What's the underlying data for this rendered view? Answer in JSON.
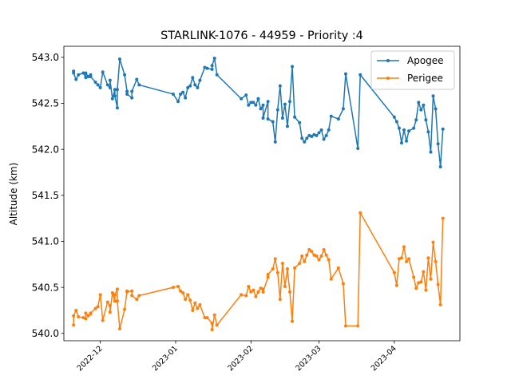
{
  "chart_data": {
    "type": "line",
    "title": "STARLINK-1076 - 44959 - Priority :4",
    "xlabel": "",
    "ylabel": "Altitude (km)",
    "ylim": [
      539.92,
      543.12
    ],
    "xlim": [
      "2022-11-16",
      "2023-04-28"
    ],
    "yticks": [
      540.0,
      540.5,
      541.0,
      541.5,
      542.0,
      542.5,
      543.0
    ],
    "ytick_labels": [
      "540.0",
      "540.5",
      "541.0",
      "541.5",
      "542.0",
      "542.5",
      "543.0"
    ],
    "xticks": [
      "2022-12-01",
      "2023-01-01",
      "2023-02-01",
      "2023-03-01",
      "2023-04-01"
    ],
    "xtick_labels": [
      "2022-12",
      "2023-01",
      "2023-02",
      "2023-03",
      "2023-04"
    ],
    "grid": false,
    "legend": "top-right",
    "series": [
      {
        "name": "Apogee",
        "color": "#1f77b4",
        "points": [
          [
            "2022-11-20",
            542.85
          ],
          [
            "2022-11-20",
            542.83
          ],
          [
            "2022-11-21",
            542.76
          ],
          [
            "2022-11-22",
            542.81
          ],
          [
            "2022-11-24",
            542.83
          ],
          [
            "2022-11-25",
            542.78
          ],
          [
            "2022-11-25",
            542.83
          ],
          [
            "2022-11-26",
            542.79
          ],
          [
            "2022-11-27",
            542.81
          ],
          [
            "2022-11-27",
            542.79
          ],
          [
            "2022-11-29",
            542.73
          ],
          [
            "2022-11-30",
            542.7
          ],
          [
            "2022-12-01",
            542.67
          ],
          [
            "2022-12-02",
            542.84
          ],
          [
            "2022-12-04",
            542.7
          ],
          [
            "2022-12-05",
            542.67
          ],
          [
            "2022-12-05",
            542.75
          ],
          [
            "2022-12-06",
            542.55
          ],
          [
            "2022-12-07",
            542.65
          ],
          [
            "2022-12-07",
            542.58
          ],
          [
            "2022-12-08",
            542.45
          ],
          [
            "2022-12-08",
            542.65
          ],
          [
            "2022-12-09",
            542.98
          ],
          [
            "2022-12-11",
            542.81
          ],
          [
            "2022-12-12",
            542.63
          ],
          [
            "2022-12-12",
            542.6
          ],
          [
            "2022-12-14",
            542.56
          ],
          [
            "2022-12-14",
            542.63
          ],
          [
            "2022-12-16",
            542.76
          ],
          [
            "2022-12-17",
            542.7
          ],
          [
            "2022-12-31",
            542.6
          ],
          [
            "2023-01-02",
            542.52
          ],
          [
            "2023-01-03",
            542.6
          ],
          [
            "2023-01-04",
            542.62
          ],
          [
            "2023-01-05",
            542.56
          ],
          [
            "2023-01-06",
            542.67
          ],
          [
            "2023-01-07",
            542.69
          ],
          [
            "2023-01-08",
            542.78
          ],
          [
            "2023-01-09",
            542.7
          ],
          [
            "2023-01-10",
            542.67
          ],
          [
            "2023-01-11",
            542.75
          ],
          [
            "2023-01-13",
            542.89
          ],
          [
            "2023-01-14",
            542.88
          ],
          [
            "2023-01-16",
            542.87
          ],
          [
            "2023-01-16",
            542.91
          ],
          [
            "2023-01-17",
            542.99
          ],
          [
            "2023-01-18",
            542.81
          ],
          [
            "2023-01-28",
            542.55
          ],
          [
            "2023-01-30",
            542.59
          ],
          [
            "2023-01-31",
            542.48
          ],
          [
            "2023-02-01",
            542.51
          ],
          [
            "2023-02-02",
            542.51
          ],
          [
            "2023-02-03",
            542.48
          ],
          [
            "2023-02-04",
            542.55
          ],
          [
            "2023-02-05",
            542.44
          ],
          [
            "2023-02-06",
            542.48
          ],
          [
            "2023-02-06",
            542.34
          ],
          [
            "2023-02-08",
            542.52
          ],
          [
            "2023-02-08",
            542.33
          ],
          [
            "2023-02-10",
            542.3
          ],
          [
            "2023-02-11",
            542.08
          ],
          [
            "2023-02-12",
            542.43
          ],
          [
            "2023-02-13",
            542.69
          ],
          [
            "2023-02-14",
            542.34
          ],
          [
            "2023-02-15",
            542.49
          ],
          [
            "2023-02-16",
            542.25
          ],
          [
            "2023-02-17",
            542.52
          ],
          [
            "2023-02-18",
            542.9
          ],
          [
            "2023-02-19",
            542.35
          ],
          [
            "2023-02-21",
            542.29
          ],
          [
            "2023-02-22",
            542.12
          ],
          [
            "2023-02-23",
            542.08
          ],
          [
            "2023-02-24",
            542.12
          ],
          [
            "2023-02-25",
            542.15
          ],
          [
            "2023-02-26",
            542.14
          ],
          [
            "2023-02-27",
            542.16
          ],
          [
            "2023-02-28",
            542.15
          ],
          [
            "2023-03-01",
            542.18
          ],
          [
            "2023-03-02",
            542.21
          ],
          [
            "2023-03-03",
            542.11
          ],
          [
            "2023-03-04",
            542.15
          ],
          [
            "2023-03-05",
            542.21
          ],
          [
            "2023-03-06",
            542.36
          ],
          [
            "2023-03-09",
            542.33
          ],
          [
            "2023-03-11",
            542.44
          ],
          [
            "2023-03-12",
            542.82
          ],
          [
            "2023-03-17",
            542.01
          ],
          [
            "2023-03-18",
            542.81
          ],
          [
            "2023-04-01",
            542.35
          ],
          [
            "2023-04-02",
            542.3
          ],
          [
            "2023-04-03",
            542.23
          ],
          [
            "2023-04-04",
            542.07
          ],
          [
            "2023-04-05",
            542.21
          ],
          [
            "2023-04-06",
            542.09
          ],
          [
            "2023-04-07",
            542.2
          ],
          [
            "2023-04-09",
            542.23
          ],
          [
            "2023-04-10",
            542.32
          ],
          [
            "2023-04-11",
            542.51
          ],
          [
            "2023-04-12",
            542.43
          ],
          [
            "2023-04-13",
            542.48
          ],
          [
            "2023-04-14",
            542.32
          ],
          [
            "2023-04-15",
            542.19
          ],
          [
            "2023-04-16",
            541.97
          ],
          [
            "2023-04-17",
            542.58
          ],
          [
            "2023-04-18",
            542.44
          ],
          [
            "2023-04-19",
            542.06
          ],
          [
            "2023-04-20",
            541.81
          ],
          [
            "2023-04-21",
            542.22
          ]
        ]
      },
      {
        "name": "Perigee",
        "color": "#ff7f0e",
        "points": [
          [
            "2022-11-20",
            540.09
          ],
          [
            "2022-11-20",
            540.19
          ],
          [
            "2022-11-21",
            540.25
          ],
          [
            "2022-11-22",
            540.18
          ],
          [
            "2022-11-24",
            540.17
          ],
          [
            "2022-11-25",
            540.16
          ],
          [
            "2022-11-25",
            540.22
          ],
          [
            "2022-11-26",
            540.19
          ],
          [
            "2022-11-27",
            540.21
          ],
          [
            "2022-11-27",
            540.22
          ],
          [
            "2022-11-29",
            540.27
          ],
          [
            "2022-11-30",
            540.29
          ],
          [
            "2022-12-01",
            540.42
          ],
          [
            "2022-12-02",
            540.14
          ],
          [
            "2022-12-04",
            540.34
          ],
          [
            "2022-12-05",
            540.3
          ],
          [
            "2022-12-05",
            540.23
          ],
          [
            "2022-12-06",
            540.44
          ],
          [
            "2022-12-07",
            540.35
          ],
          [
            "2022-12-07",
            540.42
          ],
          [
            "2022-12-08",
            540.48
          ],
          [
            "2022-12-08",
            540.35
          ],
          [
            "2022-12-09",
            540.05
          ],
          [
            "2022-12-11",
            540.26
          ],
          [
            "2022-12-12",
            540.46
          ],
          [
            "2022-12-12",
            540.45
          ],
          [
            "2022-12-14",
            540.46
          ],
          [
            "2022-12-14",
            540.41
          ],
          [
            "2022-12-16",
            540.37
          ],
          [
            "2022-12-17",
            540.41
          ],
          [
            "2022-12-31",
            540.5
          ],
          [
            "2023-01-02",
            540.51
          ],
          [
            "2023-01-03",
            540.46
          ],
          [
            "2023-01-04",
            540.44
          ],
          [
            "2023-01-05",
            540.37
          ],
          [
            "2023-01-06",
            540.42
          ],
          [
            "2023-01-07",
            540.36
          ],
          [
            "2023-01-08",
            540.25
          ],
          [
            "2023-01-09",
            540.33
          ],
          [
            "2023-01-10",
            540.27
          ],
          [
            "2023-01-11",
            540.31
          ],
          [
            "2023-01-13",
            540.17
          ],
          [
            "2023-01-14",
            540.17
          ],
          [
            "2023-01-16",
            540.11
          ],
          [
            "2023-01-16",
            540.04
          ],
          [
            "2023-01-17",
            540.2
          ],
          [
            "2023-01-18",
            540.09
          ],
          [
            "2023-01-28",
            540.42
          ],
          [
            "2023-01-30",
            540.41
          ],
          [
            "2023-01-31",
            540.51
          ],
          [
            "2023-02-01",
            540.45
          ],
          [
            "2023-02-02",
            540.47
          ],
          [
            "2023-02-03",
            540.4
          ],
          [
            "2023-02-04",
            540.45
          ],
          [
            "2023-02-05",
            540.49
          ],
          [
            "2023-02-06",
            540.48
          ],
          [
            "2023-02-06",
            540.45
          ],
          [
            "2023-02-08",
            540.61
          ],
          [
            "2023-02-08",
            540.64
          ],
          [
            "2023-02-10",
            540.7
          ],
          [
            "2023-02-11",
            540.81
          ],
          [
            "2023-02-12",
            540.66
          ],
          [
            "2023-02-13",
            540.37
          ],
          [
            "2023-02-14",
            540.76
          ],
          [
            "2023-02-15",
            540.51
          ],
          [
            "2023-02-16",
            540.7
          ],
          [
            "2023-02-17",
            540.45
          ],
          [
            "2023-02-18",
            540.13
          ],
          [
            "2023-02-19",
            540.71
          ],
          [
            "2023-02-21",
            540.76
          ],
          [
            "2023-02-22",
            540.84
          ],
          [
            "2023-02-23",
            540.78
          ],
          [
            "2023-02-24",
            540.85
          ],
          [
            "2023-02-25",
            540.91
          ],
          [
            "2023-02-26",
            540.89
          ],
          [
            "2023-02-27",
            540.85
          ],
          [
            "2023-02-28",
            540.84
          ],
          [
            "2023-03-01",
            540.8
          ],
          [
            "2023-03-02",
            540.84
          ],
          [
            "2023-03-03",
            540.91
          ],
          [
            "2023-03-04",
            540.85
          ],
          [
            "2023-03-05",
            540.8
          ],
          [
            "2023-03-06",
            540.59
          ],
          [
            "2023-03-09",
            540.71
          ],
          [
            "2023-03-11",
            540.54
          ],
          [
            "2023-03-12",
            540.08
          ],
          [
            "2023-03-17",
            540.08
          ],
          [
            "2023-03-18",
            541.31
          ],
          [
            "2023-04-01",
            540.66
          ],
          [
            "2023-04-02",
            540.52
          ],
          [
            "2023-04-03",
            540.81
          ],
          [
            "2023-04-04",
            540.82
          ],
          [
            "2023-04-05",
            540.94
          ],
          [
            "2023-04-06",
            540.78
          ],
          [
            "2023-04-07",
            540.81
          ],
          [
            "2023-04-09",
            540.61
          ],
          [
            "2023-04-10",
            540.49
          ],
          [
            "2023-04-11",
            540.55
          ],
          [
            "2023-04-12",
            540.56
          ],
          [
            "2023-04-13",
            540.67
          ],
          [
            "2023-04-14",
            540.47
          ],
          [
            "2023-04-15",
            540.82
          ],
          [
            "2023-04-16",
            540.59
          ],
          [
            "2023-04-17",
            540.99
          ],
          [
            "2023-04-18",
            540.78
          ],
          [
            "2023-04-19",
            540.53
          ],
          [
            "2023-04-20",
            540.31
          ],
          [
            "2023-04-21",
            541.25
          ]
        ]
      }
    ]
  }
}
